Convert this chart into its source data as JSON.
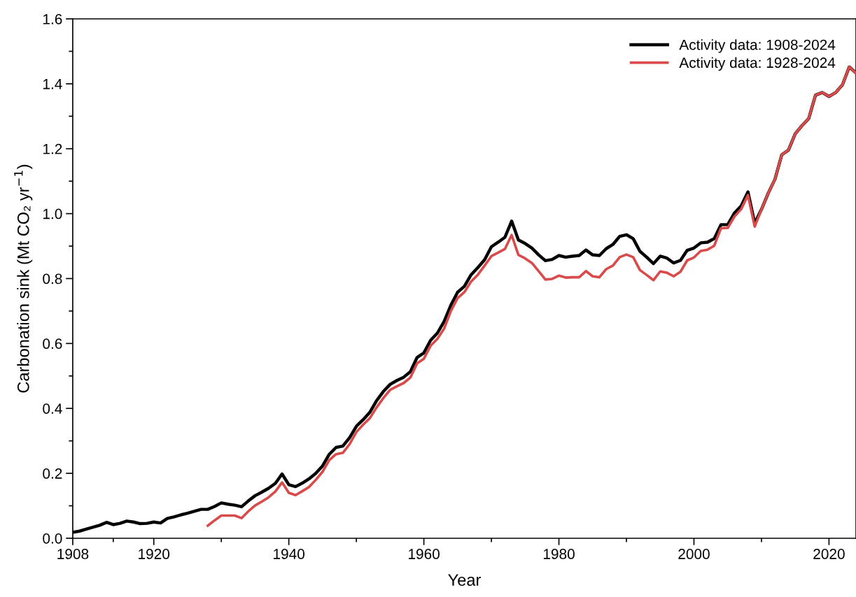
{
  "chart_data": {
    "type": "line",
    "xlabel": "Year",
    "ylabel": "Carbonation sink (Mt CO₂ yr$^{−1}$)",
    "x": [
      1908,
      1909,
      1910,
      1911,
      1912,
      1913,
      1914,
      1915,
      1916,
      1917,
      1918,
      1919,
      1920,
      1921,
      1922,
      1923,
      1924,
      1925,
      1926,
      1927,
      1928,
      1929,
      1930,
      1931,
      1932,
      1933,
      1934,
      1935,
      1936,
      1937,
      1938,
      1939,
      1940,
      1941,
      1942,
      1943,
      1944,
      1945,
      1946,
      1947,
      1948,
      1949,
      1950,
      1951,
      1952,
      1953,
      1954,
      1955,
      1956,
      1957,
      1958,
      1959,
      1960,
      1961,
      1962,
      1963,
      1964,
      1965,
      1966,
      1967,
      1968,
      1969,
      1970,
      1971,
      1972,
      1973,
      1974,
      1975,
      1976,
      1977,
      1978,
      1979,
      1980,
      1981,
      1982,
      1983,
      1984,
      1985,
      1986,
      1987,
      1988,
      1989,
      1990,
      1991,
      1992,
      1993,
      1994,
      1995,
      1996,
      1997,
      1998,
      1999,
      2000,
      2001,
      2002,
      2003,
      2004,
      2005,
      2006,
      2007,
      2008,
      2009,
      2010,
      2011,
      2012,
      2013,
      2014,
      2015,
      2016,
      2017,
      2018,
      2019,
      2020,
      2021,
      2022,
      2023,
      2024
    ],
    "series": [
      {
        "name": "Activity data: 1908-2024",
        "color": "#000000",
        "values": [
          0.018,
          0.022,
          0.028,
          0.034,
          0.04,
          0.049,
          0.042,
          0.046,
          0.053,
          0.05,
          0.045,
          0.046,
          0.05,
          0.047,
          0.061,
          0.066,
          0.072,
          0.077,
          0.083,
          0.089,
          0.089,
          0.098,
          0.109,
          0.105,
          0.102,
          0.097,
          0.115,
          0.131,
          0.142,
          0.154,
          0.169,
          0.198,
          0.165,
          0.159,
          0.17,
          0.183,
          0.2,
          0.223,
          0.259,
          0.28,
          0.284,
          0.31,
          0.345,
          0.365,
          0.388,
          0.424,
          0.452,
          0.474,
          0.486,
          0.496,
          0.513,
          0.557,
          0.571,
          0.61,
          0.632,
          0.668,
          0.718,
          0.758,
          0.776,
          0.812,
          0.834,
          0.858,
          0.898,
          0.912,
          0.927,
          0.977,
          0.919,
          0.908,
          0.894,
          0.873,
          0.855,
          0.859,
          0.871,
          0.866,
          0.869,
          0.871,
          0.888,
          0.873,
          0.871,
          0.892,
          0.905,
          0.93,
          0.935,
          0.923,
          0.884,
          0.866,
          0.846,
          0.869,
          0.863,
          0.848,
          0.856,
          0.887,
          0.894,
          0.91,
          0.912,
          0.923,
          0.966,
          0.966,
          1.002,
          1.024,
          1.067,
          0.97,
          1.013,
          1.063,
          1.106,
          1.181,
          1.196,
          1.246,
          1.271,
          1.293,
          1.365,
          1.373,
          1.361,
          1.373,
          1.397,
          1.452,
          1.433
        ]
      },
      {
        "name": "Activity data: 1928-2024",
        "color": "#d94a4a",
        "values": [
          null,
          null,
          null,
          null,
          null,
          null,
          null,
          null,
          null,
          null,
          null,
          null,
          null,
          null,
          null,
          null,
          null,
          null,
          null,
          null,
          0.039,
          0.055,
          0.07,
          0.07,
          0.07,
          0.062,
          0.083,
          0.101,
          0.113,
          0.126,
          0.144,
          0.172,
          0.14,
          0.133,
          0.145,
          0.158,
          0.18,
          0.205,
          0.241,
          0.259,
          0.263,
          0.29,
          0.327,
          0.35,
          0.37,
          0.403,
          0.432,
          0.457,
          0.468,
          0.478,
          0.495,
          0.539,
          0.553,
          0.593,
          0.614,
          0.646,
          0.7,
          0.74,
          0.758,
          0.791,
          0.812,
          0.84,
          0.869,
          0.88,
          0.891,
          0.934,
          0.873,
          0.862,
          0.848,
          0.823,
          0.797,
          0.799,
          0.809,
          0.803,
          0.804,
          0.804,
          0.823,
          0.807,
          0.804,
          0.829,
          0.84,
          0.866,
          0.874,
          0.866,
          0.826,
          0.811,
          0.795,
          0.822,
          0.818,
          0.807,
          0.821,
          0.856,
          0.865,
          0.885,
          0.889,
          0.901,
          0.955,
          0.956,
          0.991,
          1.014,
          1.057,
          0.96,
          1.013,
          1.063,
          1.106,
          1.181,
          1.196,
          1.246,
          1.271,
          1.293,
          1.365,
          1.373,
          1.361,
          1.373,
          1.397,
          1.452,
          1.433
        ]
      }
    ],
    "xlim": [
      1908,
      2024
    ],
    "xticks": [
      1908,
      {
        "value": 1914,
        "label": null
      },
      1920,
      {
        "value": 1930,
        "label": null
      },
      1940,
      {
        "value": 1950,
        "label": null
      },
      1960,
      {
        "value": 1970,
        "label": null
      },
      1980,
      {
        "value": 1990,
        "label": null
      },
      2000,
      {
        "value": 2010,
        "label": null
      },
      2020
    ],
    "ylim": [
      0,
      1.6
    ],
    "yticks": [
      {
        "value": 0,
        "label": "0.0"
      },
      {
        "value": 0.1,
        "label": null
      },
      0.2,
      {
        "value": 0.3,
        "label": null
      },
      0.4,
      {
        "value": 0.5,
        "label": null
      },
      0.6,
      {
        "value": 0.7,
        "label": null
      },
      0.8,
      {
        "value": 0.9,
        "label": null
      },
      {
        "value": 1.0,
        "label": "1.0"
      },
      {
        "value": 1.1,
        "label": null
      },
      1.2,
      {
        "value": 1.3,
        "label": null
      },
      1.4,
      {
        "value": 1.5,
        "label": null
      },
      1.6
    ],
    "grid": false,
    "legend": "top right",
    "marker": "none",
    "line_style": "solid"
  }
}
